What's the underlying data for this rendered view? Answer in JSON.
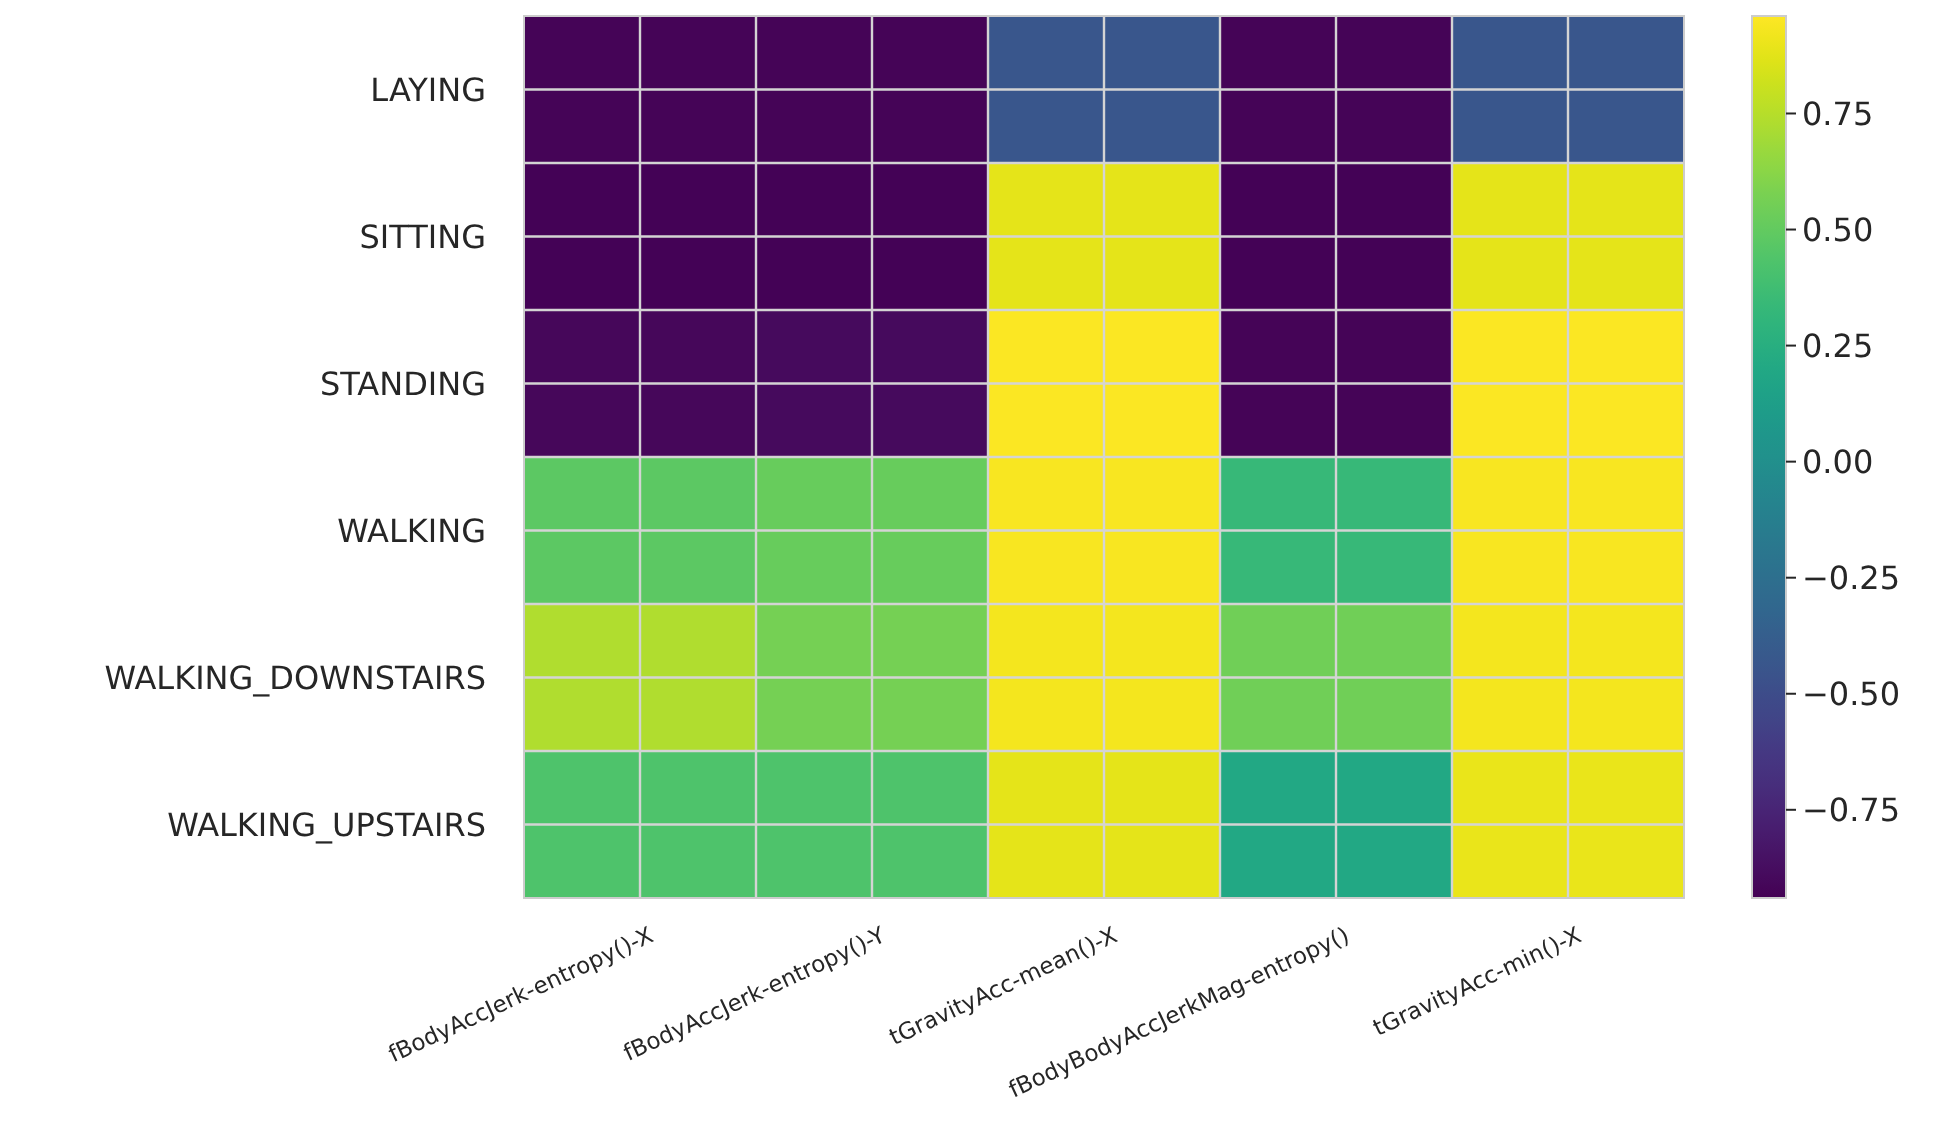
{
  "chart_data": {
    "type": "heatmap",
    "categories": [
      "fBodyAccJerk-entropy()-X",
      "fBodyAccJerk-entropy()-Y",
      "tGravityAcc-mean()-X",
      "fBodyBodyAccJerkMag-entropy()",
      "tGravityAcc-min()-X"
    ],
    "y_categories": [
      "LAYING",
      "SITTING",
      "STANDING",
      "WALKING",
      "WALKING_DOWNSTAIRS",
      "WALKING_UPSTAIRS"
    ],
    "cells": [
      [
        -0.92,
        -0.92,
        -0.43,
        -0.92,
        -0.43
      ],
      [
        -0.93,
        -0.93,
        0.88,
        -0.93,
        0.88
      ],
      [
        -0.91,
        -0.89,
        0.95,
        -0.92,
        0.95
      ],
      [
        0.48,
        0.52,
        0.94,
        0.33,
        0.94
      ],
      [
        0.73,
        0.56,
        0.93,
        0.55,
        0.93
      ],
      [
        0.43,
        0.43,
        0.88,
        0.2,
        0.9
      ]
    ],
    "clim": [
      -0.94,
      0.96
    ],
    "cticks": [
      {
        "value": -0.75,
        "label": "−0.75"
      },
      {
        "value": -0.5,
        "label": "−0.50"
      },
      {
        "value": -0.25,
        "label": "−0.25"
      },
      {
        "value": 0,
        "label": "0.00"
      },
      0.25,
      {
        "value": 0.5,
        "label": "0.50"
      },
      0.75
    ],
    "grid": true
  }
}
